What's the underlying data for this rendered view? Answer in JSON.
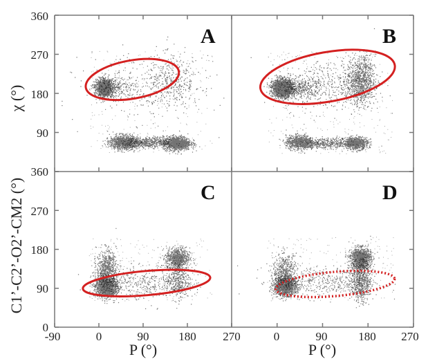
{
  "chart_data": [
    {
      "type": "scatter",
      "panel_label": "A",
      "xlabel": "",
      "ylabel": "χ (°)",
      "xlim": [
        -90,
        270
      ],
      "ylim": [
        0,
        360
      ],
      "clusters": [
        {
          "x": 10,
          "y": 193,
          "sx": 8,
          "sy": 9,
          "n": 1400
        },
        {
          "x": 30,
          "y": 193,
          "sx": 22,
          "sy": 14,
          "n": 300
        },
        {
          "x": 50,
          "y": 68,
          "sx": 14,
          "sy": 8,
          "n": 1100
        },
        {
          "x": 100,
          "y": 67,
          "sx": 22,
          "sy": 6,
          "n": 500
        },
        {
          "x": 158,
          "y": 66,
          "sx": 14,
          "sy": 8,
          "n": 1200
        },
        {
          "x": 150,
          "y": 205,
          "sx": 30,
          "sy": 30,
          "n": 350
        },
        {
          "x": 90,
          "y": 200,
          "sx": 60,
          "sy": 40,
          "n": 250
        }
      ],
      "highlight": {
        "cx": 68,
        "cy": 212,
        "rx": 96,
        "ry": 44,
        "angle_deg": 10,
        "style": "solid"
      }
    },
    {
      "type": "scatter",
      "panel_label": "B",
      "xlabel": "",
      "ylabel": "",
      "xlim": [
        -90,
        270
      ],
      "ylim": [
        0,
        360
      ],
      "clusters": [
        {
          "x": 10,
          "y": 193,
          "sx": 10,
          "sy": 10,
          "n": 2000
        },
        {
          "x": 40,
          "y": 192,
          "sx": 22,
          "sy": 13,
          "n": 400
        },
        {
          "x": 165,
          "y": 210,
          "sx": 14,
          "sy": 28,
          "n": 1000
        },
        {
          "x": 100,
          "y": 200,
          "sx": 45,
          "sy": 30,
          "n": 400
        },
        {
          "x": 45,
          "y": 68,
          "sx": 14,
          "sy": 8,
          "n": 900
        },
        {
          "x": 100,
          "y": 66,
          "sx": 22,
          "sy": 6,
          "n": 350
        },
        {
          "x": 155,
          "y": 66,
          "sx": 12,
          "sy": 7,
          "n": 800
        }
      ],
      "highlight": {
        "cx": 100,
        "cy": 218,
        "rx": 135,
        "ry": 57,
        "angle_deg": 10,
        "style": "solid"
      }
    },
    {
      "type": "scatter",
      "panel_label": "C",
      "xlabel": "P (°)",
      "ylabel": "C1’-C2’-O2’-CM2 (°)",
      "xlim": [
        -90,
        270
      ],
      "ylim": [
        0,
        360
      ],
      "clusters": [
        {
          "x": 15,
          "y": 93,
          "sx": 11,
          "sy": 11,
          "n": 1500
        },
        {
          "x": 15,
          "y": 135,
          "sx": 10,
          "sy": 22,
          "n": 700
        },
        {
          "x": 160,
          "y": 160,
          "sx": 12,
          "sy": 12,
          "n": 800
        },
        {
          "x": 160,
          "y": 110,
          "sx": 12,
          "sy": 22,
          "n": 400
        },
        {
          "x": 90,
          "y": 105,
          "sx": 45,
          "sy": 20,
          "n": 400
        }
      ],
      "highlight": {
        "cx": 97,
        "cy": 102,
        "rx": 130,
        "ry": 28,
        "angle_deg": 5,
        "style": "solid"
      }
    },
    {
      "type": "scatter",
      "panel_label": "D",
      "xlabel": "P (°)",
      "ylabel": "",
      "xlim": [
        -90,
        270
      ],
      "ylim": [
        0,
        360
      ],
      "clusters": [
        {
          "x": 15,
          "y": 95,
          "sx": 11,
          "sy": 10,
          "n": 1400
        },
        {
          "x": 15,
          "y": 130,
          "sx": 12,
          "sy": 20,
          "n": 500
        },
        {
          "x": 165,
          "y": 160,
          "sx": 10,
          "sy": 12,
          "n": 1200
        },
        {
          "x": 165,
          "y": 110,
          "sx": 10,
          "sy": 25,
          "n": 700
        },
        {
          "x": 90,
          "y": 105,
          "sx": 50,
          "sy": 18,
          "n": 400
        }
      ],
      "highlight": {
        "cx": 115,
        "cy": 100,
        "rx": 118,
        "ry": 28,
        "angle_deg": 5,
        "style": "dotted"
      }
    }
  ],
  "x_ticks": [
    "-90",
    "0",
    "90",
    "180",
    "270"
  ],
  "y_ticks": [
    "0",
    "90",
    "180",
    "270",
    "360"
  ],
  "colors": {
    "points": "#000000",
    "highlight": "#d42020",
    "frame": "#777777"
  }
}
